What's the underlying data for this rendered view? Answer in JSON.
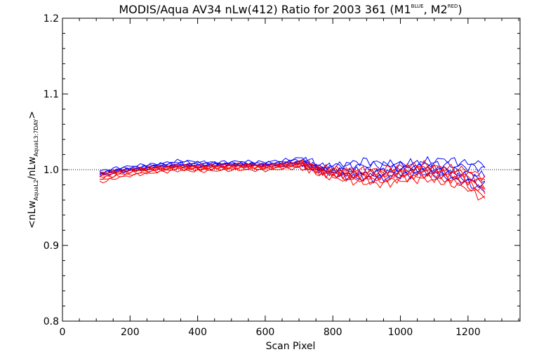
{
  "chart_data": {
    "type": "line",
    "title": {
      "main": "MODIS/Aqua AV34 nLw(412) Ratio for 2003 361 (M1",
      "sup1": "BLUE",
      "mid": ", M2",
      "sup2": "RED",
      "end": ")"
    },
    "xlabel": "Scan Pixel",
    "ylabel": {
      "open": "<nLw",
      "sub1": "AquaL2",
      "mid": "/nLw",
      "sub2": "AquaL3:7DAY",
      "close": ">"
    },
    "xlim": [
      0,
      1354
    ],
    "ylim": [
      0.8,
      1.2
    ],
    "x_ticks": [
      0,
      200,
      400,
      600,
      800,
      1000,
      1200
    ],
    "x_tick_labels": [
      "0",
      "200",
      "400",
      "600",
      "800",
      "1000",
      "1200"
    ],
    "y_ticks": [
      0.8,
      0.9,
      1.0,
      1.1,
      1.2
    ],
    "y_tick_labels": [
      "0.8",
      "0.9",
      "1.0",
      "1.1",
      "1.2"
    ],
    "reference_line": 1.0,
    "x_range": [
      110,
      1250
    ],
    "series_colors": {
      "M1": "#0000ff",
      "M2": "#ff0000"
    },
    "series": [
      {
        "color": "#0000ff",
        "values": [
          0.998,
          1.003,
          1.006,
          1.008,
          1.012,
          1.01,
          1.008,
          1.007,
          1.006,
          1.005,
          1.004,
          1.003,
          1.006,
          1.012,
          1.008,
          1.006,
          1.01,
          1.014,
          1.009,
          1.008
        ]
      },
      {
        "color": "#0000ff",
        "values": [
          0.996,
          1.001,
          1.004,
          1.007,
          1.01,
          1.009,
          1.01,
          1.011,
          1.01,
          1.012,
          1.016,
          1.004,
          1.006,
          1.005,
          1.006,
          1.008,
          1.008,
          1.006,
          1.004,
          1.002
        ]
      },
      {
        "color": "#0000ff",
        "values": [
          0.995,
          1.0,
          1.003,
          1.006,
          1.008,
          1.007,
          1.008,
          1.009,
          1.008,
          1.01,
          1.013,
          1.002,
          1.0,
          0.998,
          0.999,
          1.002,
          1.004,
          1.001,
          0.996,
          0.992
        ]
      },
      {
        "color": "#0000ff",
        "values": [
          0.994,
          0.999,
          1.002,
          1.005,
          1.007,
          1.006,
          1.007,
          1.008,
          1.007,
          1.009,
          1.011,
          1.0,
          0.997,
          0.994,
          0.995,
          0.999,
          1.001,
          0.998,
          0.992,
          0.985
        ]
      },
      {
        "color": "#0000ff",
        "values": [
          0.993,
          0.998,
          1.001,
          1.004,
          1.006,
          1.005,
          1.006,
          1.007,
          1.006,
          1.008,
          1.01,
          0.999,
          0.994,
          0.991,
          0.992,
          0.996,
          0.998,
          0.994,
          0.988,
          0.978
        ]
      },
      {
        "color": "#0000ff",
        "values": [
          0.992,
          0.997,
          1.0,
          1.003,
          1.005,
          1.004,
          1.005,
          1.006,
          1.005,
          1.007,
          1.009,
          0.998,
          0.991,
          0.988,
          0.989,
          0.993,
          0.995,
          0.991,
          0.984,
          0.972
        ]
      },
      {
        "color": "#ff0000",
        "values": [
          0.995,
          0.999,
          1.002,
          1.004,
          1.006,
          1.005,
          1.006,
          1.007,
          1.006,
          1.008,
          1.01,
          1.001,
          1.0,
          0.999,
          1.0,
          1.004,
          1.006,
          1.002,
          1.0,
          0.99
        ]
      },
      {
        "color": "#ff0000",
        "values": [
          0.993,
          0.998,
          1.001,
          1.003,
          1.005,
          1.004,
          1.005,
          1.006,
          1.005,
          1.007,
          1.009,
          1.0,
          0.998,
          0.996,
          0.997,
          1.001,
          1.003,
          0.999,
          0.996,
          0.985
        ]
      },
      {
        "color": "#ff0000",
        "values": [
          0.992,
          0.997,
          1.0,
          1.002,
          1.004,
          1.003,
          1.004,
          1.005,
          1.004,
          1.006,
          1.008,
          0.998,
          0.996,
          0.993,
          0.994,
          0.998,
          1.0,
          0.996,
          0.992,
          0.98
        ]
      },
      {
        "color": "#ff0000",
        "values": [
          0.99,
          0.996,
          0.999,
          1.001,
          1.003,
          1.002,
          1.003,
          1.004,
          1.003,
          1.005,
          1.007,
          0.997,
          0.994,
          0.991,
          0.991,
          0.995,
          0.997,
          0.993,
          0.988,
          0.975
        ]
      },
      {
        "color": "#ff0000",
        "values": [
          0.988,
          0.994,
          0.997,
          1.0,
          1.002,
          1.001,
          1.002,
          1.003,
          1.002,
          1.004,
          1.006,
          0.996,
          0.992,
          0.989,
          0.988,
          0.992,
          0.994,
          0.99,
          0.985,
          0.97
        ]
      },
      {
        "color": "#ff0000",
        "values": [
          0.986,
          0.992,
          0.995,
          0.999,
          1.001,
          1.0,
          1.001,
          1.002,
          1.001,
          1.003,
          1.005,
          0.995,
          0.99,
          0.986,
          0.985,
          0.989,
          0.991,
          0.987,
          0.981,
          0.965
        ]
      },
      {
        "color": "#ff0000",
        "values": [
          0.983,
          0.99,
          0.994,
          0.997,
          0.999,
          0.998,
          0.999,
          1.0,
          0.999,
          1.001,
          1.003,
          0.993,
          0.987,
          0.983,
          0.981,
          0.986,
          0.988,
          0.983,
          0.977,
          0.96
        ]
      }
    ]
  }
}
